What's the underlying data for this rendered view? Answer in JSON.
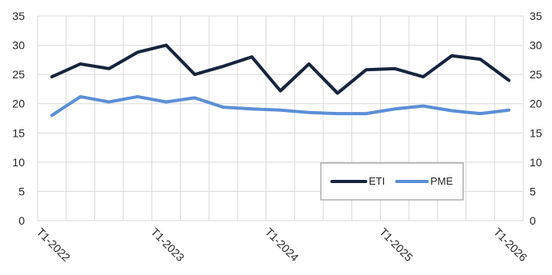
{
  "chart_data": {
    "type": "line",
    "title": "",
    "xlabel": "",
    "ylabel": "",
    "ylim": [
      0,
      35
    ],
    "y_ticks": [
      "0",
      "5",
      "10",
      "15",
      "20",
      "25",
      "30",
      "35"
    ],
    "right_y_ticks": [
      "0",
      "5",
      "10",
      "15",
      "20",
      "25",
      "30",
      "35"
    ],
    "grid": true,
    "legend_position": "bottom-right",
    "x": [
      "T1-2022",
      "T2-2022",
      "T3-2022",
      "T4-2022",
      "T1-2023",
      "T2-2023",
      "T3-2023",
      "T4-2023",
      "T1-2024",
      "T2-2024",
      "T3-2024",
      "T4-2024",
      "T1-2025",
      "T2-2025",
      "T3-2025",
      "T4-2025",
      "T1-2026"
    ],
    "x_tick_labels": [
      {
        "index": 0,
        "label": "T1-2022"
      },
      {
        "index": 4,
        "label": "T1-2023"
      },
      {
        "index": 8,
        "label": "T1-2024"
      },
      {
        "index": 12,
        "label": "T1-2025"
      },
      {
        "index": 16,
        "label": "T1-2026"
      }
    ],
    "series": [
      {
        "name": "ETI",
        "color": "#16243d",
        "values": [
          24.6,
          26.8,
          26.0,
          28.8,
          30.0,
          25.0,
          26.4,
          28.0,
          22.2,
          26.8,
          21.8,
          25.8,
          26.0,
          24.6,
          28.2,
          27.6,
          24.0
        ]
      },
      {
        "name": "PME",
        "color": "#5b8fd6",
        "values": [
          18.0,
          21.2,
          20.3,
          21.2,
          20.3,
          21.0,
          19.4,
          19.1,
          18.9,
          18.5,
          18.3,
          18.3,
          19.1,
          19.6,
          18.8,
          18.3,
          18.9
        ]
      }
    ]
  }
}
